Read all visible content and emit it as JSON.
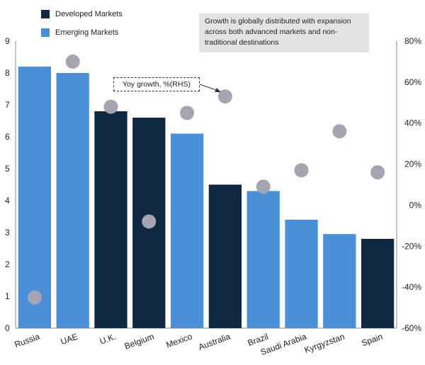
{
  "legend": {
    "developed": {
      "label": "Developed Markets",
      "color": "#0f2942"
    },
    "emerging": {
      "label": "Emerging Markets",
      "color": "#4a90d9"
    }
  },
  "annotation_box": "Growth is globally distributed with expansion across both advanced markets and non-traditional destinations",
  "callout": "Yoy growth, %(RHS)",
  "chart_data": {
    "type": "bar",
    "categories": [
      "Russia",
      "UAE",
      "U.K.",
      "Belgium",
      "Mexico",
      "Australia",
      "Brazil",
      "Saudi Arabia",
      "Kyrgyzstan",
      "Spain"
    ],
    "series": [
      {
        "type": "bar",
        "axis": "left",
        "values": [
          8.2,
          8.0,
          6.8,
          6.6,
          6.1,
          4.5,
          4.3,
          3.4,
          2.95,
          2.8
        ],
        "market_type": [
          "Emerging",
          "Emerging",
          "Developed",
          "Developed",
          "Emerging",
          "Developed",
          "Emerging",
          "Emerging",
          "Emerging",
          "Developed"
        ]
      },
      {
        "name": "Yoy growth, %(RHS)",
        "type": "scatter",
        "axis": "right",
        "values": [
          -45,
          70,
          48,
          -8,
          45,
          53,
          9,
          17,
          36,
          16
        ],
        "color": "#a6a4b0"
      }
    ],
    "y_left": {
      "min": 0,
      "max": 9,
      "ticks": [
        "0",
        "1",
        "2",
        "3",
        "4",
        "5",
        "6",
        "7",
        "8",
        "9"
      ]
    },
    "y_right": {
      "min": -60,
      "max": 80,
      "ticks": [
        "-60%",
        "-40%",
        "-20%",
        "0%",
        "20%",
        "40%",
        "60%",
        "80%"
      ]
    },
    "grid": false
  }
}
